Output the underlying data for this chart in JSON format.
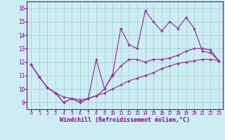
{
  "title": "",
  "xlabel": "Windchill (Refroidissement éolien,°C)",
  "background_color": "#cceef2",
  "grid_color": "#aad4d8",
  "line_color": "#993399",
  "x_data": [
    0,
    1,
    2,
    3,
    4,
    5,
    6,
    7,
    8,
    9,
    10,
    11,
    12,
    13,
    14,
    15,
    16,
    17,
    18,
    19,
    20,
    21,
    22,
    23
  ],
  "y_line1": [
    11.8,
    10.9,
    10.1,
    9.7,
    9.0,
    9.3,
    9.0,
    9.3,
    12.2,
    10.0,
    11.1,
    14.5,
    13.3,
    13.0,
    15.8,
    15.0,
    14.3,
    15.0,
    14.5,
    15.3,
    14.5,
    12.8,
    12.7,
    12.1
  ],
  "y_line2": [
    11.8,
    10.9,
    10.1,
    9.7,
    9.0,
    9.3,
    9.0,
    9.3,
    9.5,
    10.0,
    11.0,
    11.7,
    12.2,
    12.2,
    12.0,
    12.2,
    12.2,
    12.3,
    12.5,
    12.8,
    13.0,
    13.0,
    12.9,
    12.1
  ],
  "y_line3": [
    11.8,
    10.9,
    10.1,
    9.7,
    9.4,
    9.3,
    9.2,
    9.3,
    9.5,
    9.7,
    10.0,
    10.3,
    10.6,
    10.8,
    11.0,
    11.2,
    11.5,
    11.7,
    11.9,
    12.0,
    12.1,
    12.2,
    12.2,
    12.1
  ],
  "ylim": [
    8.5,
    16.5
  ],
  "xlim": [
    -0.5,
    23.5
  ],
  "yticks": [
    9,
    10,
    11,
    12,
    13,
    14,
    15,
    16
  ],
  "xticks": [
    0,
    1,
    2,
    3,
    4,
    5,
    6,
    7,
    8,
    9,
    10,
    11,
    12,
    13,
    14,
    15,
    16,
    17,
    18,
    19,
    20,
    21,
    22,
    23
  ],
  "tick_color": "#880088",
  "xlabel_fontsize": 6.0,
  "ytick_fontsize": 5.5,
  "xtick_fontsize": 4.8,
  "marker_size": 2.2,
  "line_width": 0.9
}
